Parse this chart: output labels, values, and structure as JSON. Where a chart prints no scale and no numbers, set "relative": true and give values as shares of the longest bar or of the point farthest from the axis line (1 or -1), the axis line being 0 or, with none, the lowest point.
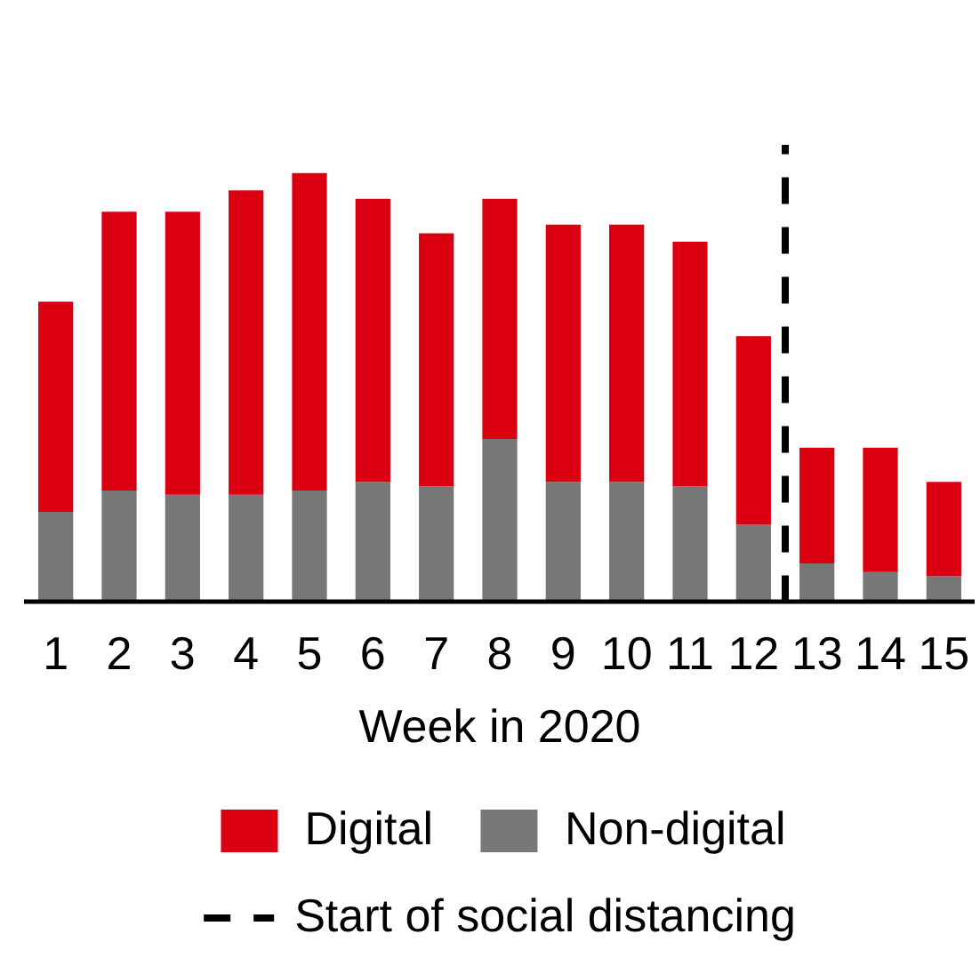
{
  "chart_data": {
    "type": "bar",
    "xlabel": "Week in 2020",
    "stacked": true,
    "relative": true,
    "x": [
      1,
      2,
      3,
      4,
      5,
      6,
      7,
      8,
      9,
      10,
      11,
      12,
      13,
      14,
      15
    ],
    "xlim": [
      0.5,
      15.5
    ],
    "xticks": [
      1,
      2,
      3,
      4,
      5,
      6,
      7,
      8,
      9,
      10,
      11,
      12,
      13,
      14,
      15
    ],
    "series": [
      {
        "name": "Non-digital",
        "color": "#777777",
        "values": [
          0.21,
          0.26,
          0.25,
          0.25,
          0.26,
          0.28,
          0.27,
          0.38,
          0.28,
          0.28,
          0.27,
          0.18,
          0.09,
          0.07,
          0.06
        ]
      },
      {
        "name": "Digital",
        "color": "#da0012",
        "values": [
          0.49,
          0.65,
          0.66,
          0.71,
          0.74,
          0.66,
          0.59,
          0.56,
          0.6,
          0.6,
          0.57,
          0.44,
          0.27,
          0.29,
          0.22
        ]
      }
    ],
    "ref_lines": [
      {
        "axis": "x",
        "value": 12.5,
        "label": "Start of social distancing",
        "color": "#000000",
        "line_style": "dashed"
      }
    ],
    "legend": "bottom"
  }
}
